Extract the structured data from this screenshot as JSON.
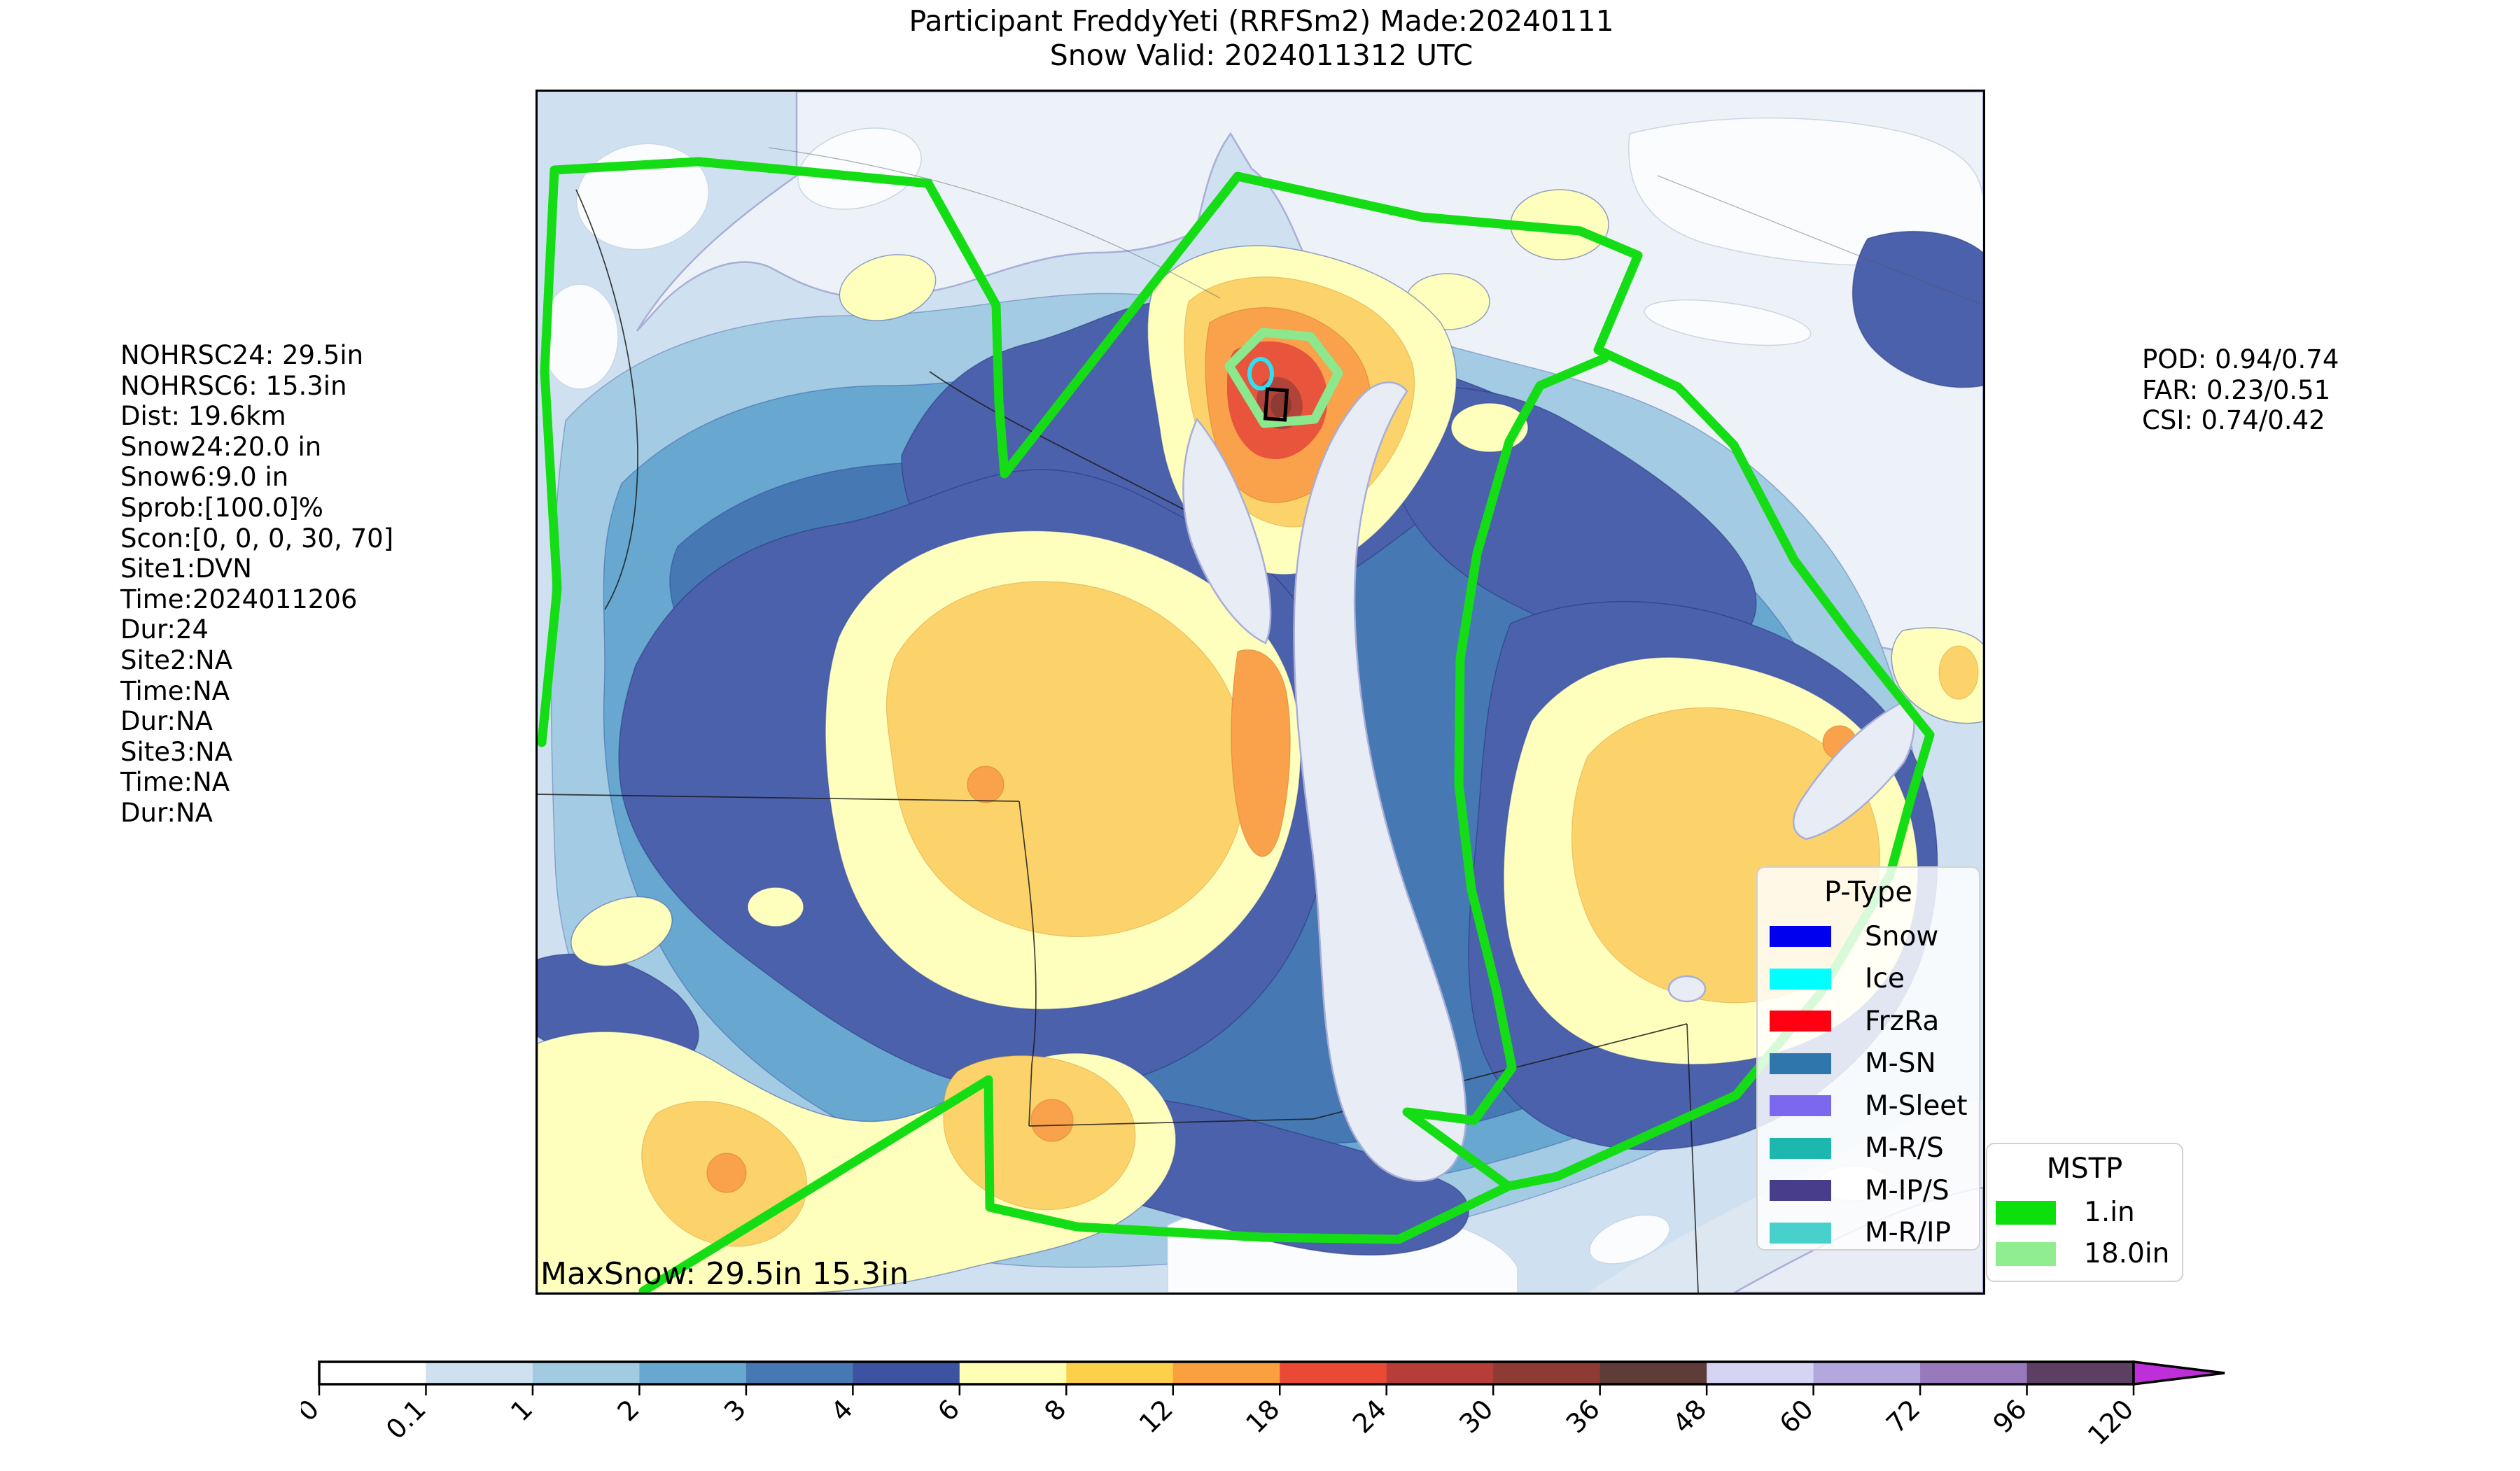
{
  "title": {
    "line1": "Participant FreddyYeti (RRFSm2) Made:20240111",
    "line2": "Snow Valid: 2024011312 UTC"
  },
  "left_stats": {
    "lines": [
      "NOHRSC24: 29.5in",
      "NOHRSC6: 15.3in",
      "Dist: 19.6km",
      "Snow24:20.0 in",
      "Snow6:9.0 in",
      "Sprob:[100.0]%",
      "Scon:[0, 0, 0, 30, 70]",
      "Site1:DVN",
      "Time:2024011206",
      "Dur:24",
      "Site2:NA",
      "Time:NA",
      "Dur:NA",
      "Site3:NA",
      "Time:NA",
      "Dur:NA"
    ]
  },
  "right_stats": {
    "lines": [
      "POD: 0.94/0.74",
      "FAR: 0.23/0.51",
      "CSI: 0.74/0.42"
    ]
  },
  "map": {
    "max_snow_label": "MaxSnow: 29.5in 15.3in"
  },
  "legends": {
    "ptype": {
      "title": "P-Type",
      "items": [
        {
          "label": "Snow",
          "color": "#0000ee"
        },
        {
          "label": "Ice",
          "color": "#00ffff"
        },
        {
          "label": "FrzRa",
          "color": "#ff0012"
        },
        {
          "label": "M-SN",
          "color": "#2e77ad"
        },
        {
          "label": "M-Sleet",
          "color": "#7b68ee"
        },
        {
          "label": "M-R/S",
          "color": "#1cb8b0"
        },
        {
          "label": "M-IP/S",
          "color": "#483d8b"
        },
        {
          "label": "M-R/IP",
          "color": "#48d1cc"
        }
      ]
    },
    "mstp": {
      "title": "MSTP",
      "items": [
        {
          "label": "1.in",
          "color": "#0ce00c"
        },
        {
          "label": "18.0in",
          "color": "#90ee90"
        }
      ]
    }
  },
  "colorbar": {
    "ticks": [
      "0",
      "0.1",
      "1",
      "2",
      "3",
      "4",
      "6",
      "8",
      "12",
      "18",
      "24",
      "30",
      "36",
      "48",
      "60",
      "72",
      "96",
      "120"
    ],
    "segment_colors": [
      "#ffffff",
      "#cfe0ef",
      "#a2cbe2",
      "#68a8d0",
      "#4679b4",
      "#3d52a1",
      "#ffffb3",
      "#fdd04a",
      "#fba03e",
      "#ea4a33",
      "#b63d38",
      "#8f3b35",
      "#5e3c38",
      "#d6d4f3",
      "#b3a7de",
      "#9879bc",
      "#5d3f64"
    ],
    "arrow_color": "#bd2fd8",
    "border_color": "#000000"
  },
  "palette": {
    "water_pale": "#edf2f8",
    "base_light": "#cfe1f0",
    "blue_light": "#a3cbe3",
    "blue_mid": "#68a8d0",
    "blue_steel": "#4679b4",
    "navy": "#4c61ab",
    "yellow": "#ffffbd",
    "gold": "#fcd36a",
    "orange": "#f9a14b",
    "red_orange": "#e8543c",
    "red_dark": "#b2433a",
    "red_deep": "#8f3a33",
    "lake": "#e8edf5",
    "coast": "#a9aed8",
    "white_patch": "#fafcfe",
    "green": "#15dd15",
    "green_light": "#8ce88c",
    "cyan_marker": "#2fe0f2",
    "state_line": "#1b1b1b"
  },
  "chart_data": {
    "type": "heatmap",
    "title": "Participant FreddyYeti (RRFSm2) Made:20240111 — Snow Valid: 2024011312 UTC",
    "units": "in",
    "variable": "24h/6h snowfall",
    "levels": [
      0,
      0.1,
      1,
      2,
      3,
      4,
      6,
      8,
      12,
      18,
      24,
      30,
      36,
      48,
      60,
      72,
      96,
      120
    ],
    "level_colors": [
      "#ffffff",
      "#cfe0ef",
      "#a2cbe2",
      "#68a8d0",
      "#4679b4",
      "#3d52a1",
      "#ffffb3",
      "#fdd04a",
      "#fba03e",
      "#ea4a33",
      "#b63d38",
      "#8f3b35",
      "#5e3c38",
      "#d6d4f3",
      "#b3a7de",
      "#9879bc",
      "#5d3f64"
    ],
    "extend_max_color": "#bd2fd8",
    "legend_position": "lower right",
    "mstp_contours": [
      {
        "value": "1.in",
        "color": "#0ce00c"
      },
      {
        "value": "18.0in",
        "color": "#90ee90"
      }
    ],
    "ptype_categories": [
      "Snow",
      "Ice",
      "FrzRa",
      "M-SN",
      "M-Sleet",
      "M-R/S",
      "M-IP/S",
      "M-R/IP"
    ],
    "observed": {
      "NOHRSC24_in": 29.5,
      "NOHRSC6_in": 15.3,
      "dist_km": 19.6
    },
    "forecast": {
      "Snow24_in": 20.0,
      "Snow6_in": 9.0,
      "Sprob_pct": [
        100.0
      ],
      "Scon": [
        0,
        0,
        0,
        30,
        70
      ]
    },
    "sites": [
      {
        "site": "DVN",
        "time": "2024011206",
        "dur": "24"
      },
      {
        "site": "NA",
        "time": "NA",
        "dur": "NA"
      },
      {
        "site": "NA",
        "time": "NA",
        "dur": "NA"
      }
    ],
    "verification": {
      "POD": "0.94/0.74",
      "FAR": "0.23/0.51",
      "CSI": "0.74/0.42"
    },
    "max_snow": {
      "label": "MaxSnow: 29.5in 15.3in",
      "values_in": [
        29.5,
        15.3
      ]
    }
  }
}
